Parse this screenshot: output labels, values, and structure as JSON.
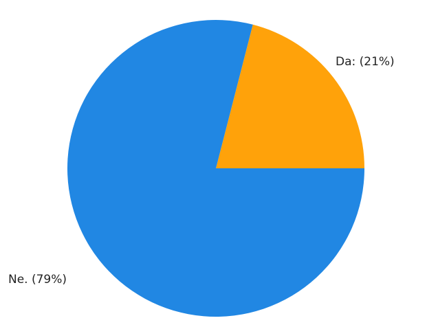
{
  "chart_data": {
    "type": "pie",
    "title": "",
    "slices": [
      {
        "label": "Da: (21%)",
        "value": 21,
        "color": "#FFA20A"
      },
      {
        "label": "Ne. (79%)",
        "value": 79,
        "color": "#2187E3"
      }
    ]
  }
}
